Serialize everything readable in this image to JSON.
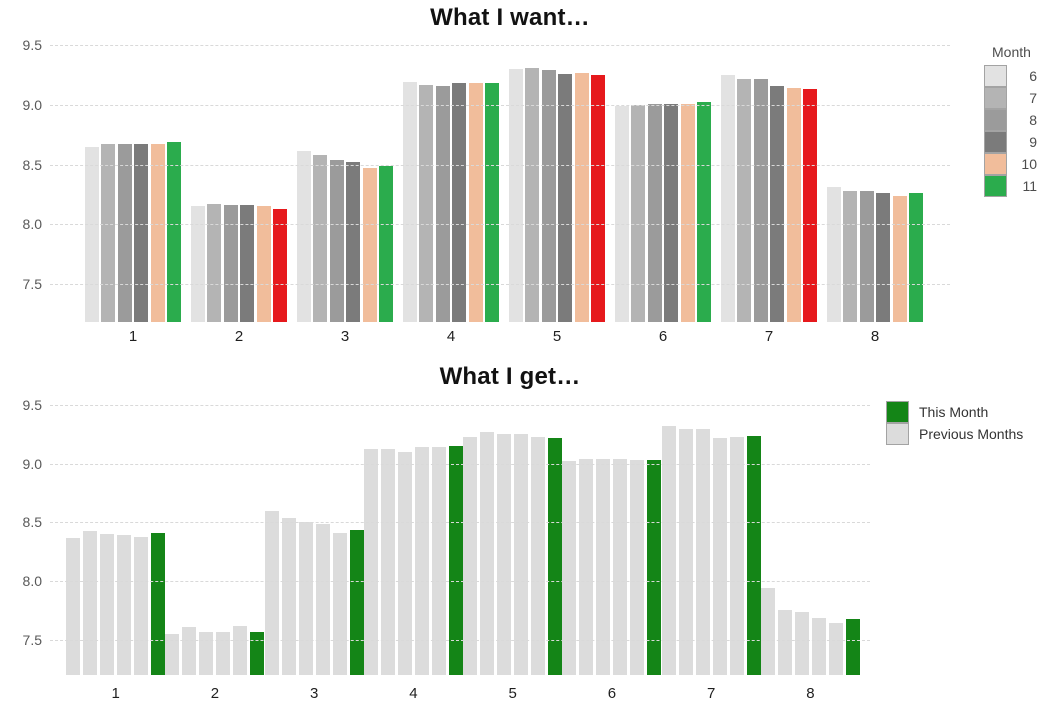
{
  "page": {
    "background": "#ffffff"
  },
  "chart_data": [
    {
      "id": "what-i-want",
      "type": "bar",
      "title": "What I want…",
      "xlabel": "",
      "ylabel": "",
      "ylim": [
        7.18,
        9.56
      ],
      "yticks": [
        7.5,
        8.0,
        8.5,
        9.0,
        9.5
      ],
      "grid": "dashed-horizontal",
      "categories": [
        "1",
        "2",
        "3",
        "4",
        "5",
        "6",
        "7",
        "8"
      ],
      "legend": {
        "title": "Month",
        "position": "right",
        "entries": [
          {
            "label": "6",
            "color": "#e2e2e2"
          },
          {
            "label": "7",
            "color": "#b4b4b4"
          },
          {
            "label": "8",
            "color": "#9b9b9b"
          },
          {
            "label": "9",
            "color": "#7b7b7b"
          },
          {
            "label": "10",
            "color": "#f1bd9b"
          },
          {
            "label": "11",
            "color": "#2bac4d"
          }
        ]
      },
      "series": [
        {
          "name": "6",
          "color": "#e2e2e2",
          "values": [
            8.65,
            8.15,
            8.61,
            9.19,
            9.3,
            8.99,
            9.25,
            8.31
          ]
        },
        {
          "name": "7",
          "color": "#b4b4b4",
          "values": [
            8.67,
            8.17,
            8.58,
            9.17,
            9.31,
            9.0,
            9.22,
            8.28
          ]
        },
        {
          "name": "8",
          "color": "#9b9b9b",
          "values": [
            8.67,
            8.16,
            8.54,
            9.16,
            9.29,
            9.01,
            9.22,
            8.28
          ]
        },
        {
          "name": "9",
          "color": "#7b7b7b",
          "values": [
            8.67,
            8.16,
            8.52,
            9.18,
            9.26,
            9.01,
            9.16,
            8.26
          ]
        },
        {
          "name": "10",
          "color": "#f1bd9b",
          "values": [
            8.67,
            8.15,
            8.47,
            9.18,
            9.27,
            9.01,
            9.14,
            8.24
          ]
        },
        {
          "name": "11",
          "colors": [
            "#2bac4d",
            "#e6191c",
            "#2bac4d",
            "#2bac4d",
            "#e6191c",
            "#2bac4d",
            "#e6191c",
            "#2bac4d"
          ],
          "values": [
            8.69,
            8.13,
            8.49,
            9.18,
            9.25,
            9.02,
            9.13,
            8.26
          ]
        }
      ]
    },
    {
      "id": "what-i-get",
      "type": "bar",
      "title": "What I get…",
      "xlabel": "",
      "ylabel": "",
      "ylim": [
        7.2,
        9.56
      ],
      "yticks": [
        7.5,
        8.0,
        8.5,
        9.0,
        9.5
      ],
      "grid": "dashed-horizontal",
      "categories": [
        "1",
        "2",
        "3",
        "4",
        "5",
        "6",
        "7",
        "8"
      ],
      "legend": {
        "position": "top-right",
        "entries": [
          {
            "label": "This Month",
            "color": "#148517"
          },
          {
            "label": "Previous Months",
            "color": "#dcdcdc"
          }
        ]
      },
      "series": [
        {
          "name": "Previous 1",
          "color": "#dcdcdc",
          "values": [
            8.37,
            7.55,
            8.6,
            9.13,
            9.23,
            9.02,
            9.32,
            7.94
          ]
        },
        {
          "name": "Previous 2",
          "color": "#dcdcdc",
          "values": [
            8.43,
            7.61,
            8.54,
            9.13,
            9.27,
            9.04,
            9.3,
            7.75
          ]
        },
        {
          "name": "Previous 3",
          "color": "#dcdcdc",
          "values": [
            8.4,
            7.57,
            8.5,
            9.1,
            9.25,
            9.04,
            9.3,
            7.74
          ]
        },
        {
          "name": "Previous 4",
          "color": "#dcdcdc",
          "values": [
            8.39,
            7.57,
            8.49,
            9.14,
            9.25,
            9.04,
            9.22,
            7.69
          ]
        },
        {
          "name": "Previous 5",
          "color": "#dcdcdc",
          "values": [
            8.38,
            7.62,
            8.41,
            9.14,
            9.23,
            9.03,
            9.23,
            7.64
          ]
        },
        {
          "name": "This Month",
          "color": "#148517",
          "values": [
            8.41,
            7.57,
            8.44,
            9.15,
            9.22,
            9.03,
            9.24,
            7.68
          ]
        }
      ]
    }
  ]
}
